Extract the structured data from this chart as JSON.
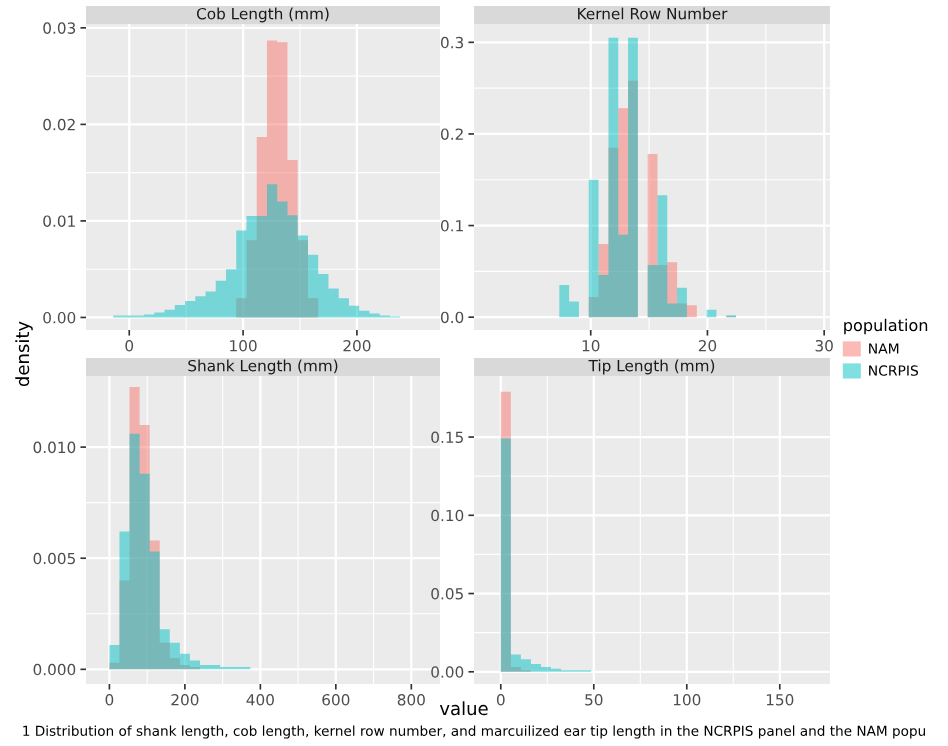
{
  "chart_data": [
    {
      "type": "histogram",
      "title": "Cob Length (mm)",
      "ylabel": "density",
      "xlabel": "value",
      "legend": "right",
      "legend_title": "population",
      "bins": [
        -23,
        -14,
        -5,
        4,
        13,
        22,
        31,
        40,
        49,
        58,
        67,
        76,
        85,
        94,
        103,
        112,
        121,
        130,
        139,
        148,
        157,
        166,
        175,
        184,
        193,
        202,
        211,
        220,
        229,
        238,
        247
      ],
      "series": [
        {
          "name": "NAM",
          "color": "#f8766d",
          "values": [
            0,
            0,
            0,
            0,
            0,
            0,
            0,
            0,
            0,
            0,
            0,
            0,
            0,
            0.002,
            0.008,
            0.0187,
            0.0287,
            0.0285,
            0.0163,
            0.008,
            0.002,
            0,
            0,
            0,
            0,
            0,
            0,
            0,
            0,
            0
          ]
        },
        {
          "name": "NCRPIS",
          "color": "#00bfc4",
          "values": [
            0,
            0.0002,
            0.0002,
            0.0002,
            0.0003,
            0.0005,
            0.0008,
            0.0013,
            0.0017,
            0.0022,
            0.0027,
            0.0038,
            0.005,
            0.009,
            0.0105,
            0.0105,
            0.0138,
            0.012,
            0.0106,
            0.0085,
            0.0065,
            0.0045,
            0.003,
            0.002,
            0.0012,
            0.0007,
            0.0004,
            0.0002,
            0.0001,
            0
          ]
        }
      ],
      "xlim": [
        -38,
        273
      ],
      "ylim": [
        -0.0013,
        0.0304
      ],
      "xticks": [
        0,
        100,
        200
      ],
      "yticks": [
        {
          "value": 0,
          "label": "0.00"
        },
        {
          "value": 0.01,
          "label": "0.01"
        },
        {
          "value": 0.02,
          "label": "0.02"
        },
        {
          "value": 0.03,
          "label": "0.03"
        }
      ],
      "grid": true
    },
    {
      "type": "histogram",
      "title": "Kernel Row Number",
      "bins": [
        7.31,
        8.15,
        8.99,
        9.83,
        10.67,
        11.52,
        12.36,
        13.2,
        14.04,
        14.88,
        15.72,
        16.56,
        17.4,
        18.24,
        19.09,
        19.93,
        20.77,
        21.61,
        22.45
      ],
      "series": [
        {
          "color": "#f8766d",
          "values": [
            0,
            0,
            0,
            0.022,
            0.08,
            0.185,
            0.228,
            0.258,
            0,
            0.178,
            0.057,
            0.06,
            0.015,
            0.013,
            0,
            0,
            0,
            0.001
          ]
        },
        {
          "color": "#00bfc4",
          "values": [
            0.035,
            0.017,
            0,
            0.15,
            0.046,
            0.305,
            0.09,
            0.305,
            0,
            0.057,
            0.133,
            0.015,
            0.032,
            0,
            0,
            0.008,
            0,
            0.002
          ]
        }
      ],
      "xlim": [
        0,
        30.5
      ],
      "ylim": [
        -0.014,
        0.32
      ],
      "xticks": [
        10,
        20,
        30
      ],
      "yticks": [
        {
          "value": 0,
          "label": "0.0"
        },
        0.1,
        0.2,
        0.3
      ],
      "grid": true
    },
    {
      "type": "histogram",
      "title": "Shank Length (mm)",
      "bins": [
        0,
        26.7,
        53.3,
        80,
        106.7,
        133.3,
        160,
        186.7,
        213.3,
        240,
        266.7,
        293.3,
        320,
        346.7,
        373.3,
        400,
        426.7,
        453.3,
        480,
        506.7,
        533.3,
        560,
        586.7,
        613.3,
        640,
        666.7,
        693.3,
        720,
        746.7,
        773.3,
        800
      ],
      "series": [
        {
          "color": "#f8766d",
          "values": [
            0.0003,
            0.004,
            0.0127,
            0.011,
            0.0058,
            0.0012,
            0.0005,
            0.0002,
            0.0001,
            0,
            0,
            0,
            0,
            0,
            0,
            0,
            0,
            0,
            0,
            0,
            0,
            0,
            0,
            0,
            0,
            0,
            0,
            0,
            0,
            0
          ]
        },
        {
          "color": "#00bfc4",
          "values": [
            0.0011,
            0.0062,
            0.0106,
            0.0088,
            0.0053,
            0.0018,
            0.0012,
            0.0007,
            0.0004,
            0.0002,
            0.0002,
            0.0001,
            0.0001,
            0.0001,
            0,
            0,
            0,
            0,
            0,
            0,
            0,
            0,
            0,
            0,
            0,
            0,
            0,
            0,
            0,
            0
          ]
        }
      ],
      "xlim": [
        -62,
        876
      ],
      "ylim": [
        -0.00066,
        0.0132
      ],
      "xticks": [
        0,
        200,
        400,
        600,
        800
      ],
      "yticks": [
        {
          "value": 0,
          "label": "0.000"
        },
        0.005,
        {
          "value": 0.01,
          "label": "0.010"
        }
      ],
      "grid": true
    },
    {
      "type": "histogram",
      "title": "Tip Length (mm)",
      "bins": [
        0,
        5.4,
        10.8,
        16.2,
        21.6,
        27,
        32.4,
        37.8,
        43.2,
        48.6,
        54,
        59.4,
        64.8,
        70.2,
        75.6,
        81,
        86.4,
        91.8,
        97.2,
        102.6,
        108,
        113.4,
        118.8,
        124.2,
        129.6,
        135,
        140.4,
        145.8,
        151.2,
        156.6,
        162
      ],
      "series": [
        {
          "color": "#f8766d",
          "values": [
            0.179,
            0.003,
            0.001,
            0,
            0,
            0,
            0,
            0,
            0,
            0,
            0,
            0,
            0,
            0,
            0,
            0,
            0,
            0,
            0,
            0,
            0,
            0,
            0,
            0,
            0,
            0,
            0,
            0,
            0,
            0
          ]
        },
        {
          "color": "#00bfc4",
          "values": [
            0.149,
            0.011,
            0.008,
            0.005,
            0.003,
            0.002,
            0.001,
            0.001,
            0.001,
            0,
            0,
            0,
            0,
            0,
            0,
            0,
            0,
            0,
            0,
            0,
            0,
            0,
            0,
            0,
            0,
            0,
            0,
            0,
            0,
            0
          ]
        }
      ],
      "xlim": [
        -14.4,
        177
      ],
      "ylim": [
        -0.0078,
        0.189
      ],
      "xticks": [
        0,
        50,
        100,
        150
      ],
      "yticks": [
        {
          "value": 0,
          "label": "0.00"
        },
        {
          "value": 0.05,
          "label": "0.05"
        },
        {
          "value": 0.1,
          "label": "0.10"
        },
        0.15
      ],
      "grid": true,
      "annotations": [
        "1 Distribution of shank length, cob length, kernel row number, and marcuilized ear tip length in the NCRPIS panel and the NAM popu"
      ]
    }
  ]
}
